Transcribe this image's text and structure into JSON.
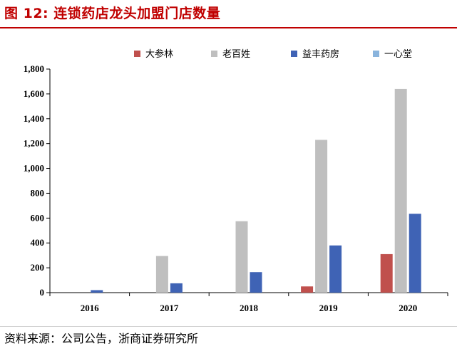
{
  "figure": {
    "title": "图 12: 连锁药店龙头加盟门店数量",
    "source": "资料来源：公司公告，浙商证券研究所"
  },
  "chart_data": {
    "type": "bar",
    "title": "",
    "xlabel": "",
    "ylabel": "",
    "categories": [
      "2016",
      "2017",
      "2018",
      "2019",
      "2020"
    ],
    "y_ticks": [
      "0",
      "200",
      "400",
      "600",
      "800",
      "1,000",
      "1,200",
      "1,400",
      "1,600",
      "1,800"
    ],
    "ylim": [
      0,
      1800
    ],
    "grid": false,
    "legend_position": "top",
    "series": [
      {
        "name": "大参林",
        "color": "#c0504d",
        "values": [
          0,
          0,
          0,
          50,
          310
        ]
      },
      {
        "name": "老百姓",
        "color": "#bfbfbf",
        "values": [
          0,
          295,
          575,
          1230,
          1640
        ]
      },
      {
        "name": "益丰药房",
        "color": "#3f63b5",
        "values": [
          20,
          75,
          165,
          380,
          635
        ]
      },
      {
        "name": "一心堂",
        "color": "#8ab4dd",
        "values": [
          0,
          0,
          0,
          0,
          0
        ]
      }
    ]
  }
}
